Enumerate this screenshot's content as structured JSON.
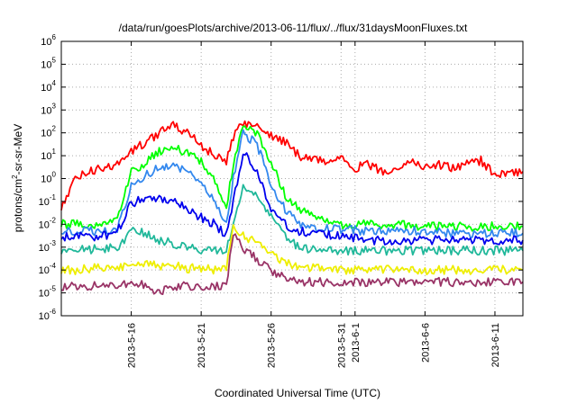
{
  "chart_data": {
    "type": "line",
    "title": "/data/run/goesPlots/archive/2013-06-11/flux/../flux/31daysMoonFluxes.txt",
    "xlabel": "Coordinated Universal Time (UTC)",
    "ylabel": "protons/cm²-sr-sr-MeV",
    "ylabel_parts": {
      "pre": "protons/cm",
      "sup": "2",
      "post": "-sr-sr-MeV"
    },
    "yscale": "log",
    "ylim": [
      1e-06,
      1000000.0
    ],
    "y_ticks": [
      {
        "value": 1e-06,
        "base": "10",
        "exp": "-6"
      },
      {
        "value": 1e-05,
        "base": "10",
        "exp": "-5"
      },
      {
        "value": 0.0001,
        "base": "10",
        "exp": "-4"
      },
      {
        "value": 0.001,
        "base": "10",
        "exp": "-3"
      },
      {
        "value": 0.01,
        "base": "10",
        "exp": "-2"
      },
      {
        "value": 0.1,
        "base": "10",
        "exp": "-1"
      },
      {
        "value": 1,
        "base": "10",
        "exp": "0"
      },
      {
        "value": 10,
        "base": "10",
        "exp": "1"
      },
      {
        "value": 100,
        "base": "10",
        "exp": "2"
      },
      {
        "value": 1000.0,
        "base": "10",
        "exp": "3"
      },
      {
        "value": 10000.0,
        "base": "10",
        "exp": "4"
      },
      {
        "value": 100000.0,
        "base": "10",
        "exp": "5"
      },
      {
        "value": 1000000.0,
        "base": "10",
        "exp": "6"
      }
    ],
    "xlim": [
      "2013-05-11",
      "2013-06-13"
    ],
    "x_ticks": [
      {
        "date": "2013-05-16",
        "label": "2013-5-16"
      },
      {
        "date": "2013-05-21",
        "label": "2013-5-21"
      },
      {
        "date": "2013-05-26",
        "label": "2013-5-26"
      },
      {
        "date": "2013-05-31",
        "label": "2013-5-31"
      },
      {
        "date": "2013-06-01",
        "label": "2013-6-1"
      },
      {
        "date": "2013-06-06",
        "label": "2013-6-6"
      },
      {
        "date": "2013-06-11",
        "label": "2013-6-11"
      }
    ],
    "grid": true,
    "series": [
      {
        "color": "#ff0000",
        "points": [
          [
            "2013-05-11",
            0.05
          ],
          [
            "2013-05-12",
            1
          ],
          [
            "2013-05-13",
            2
          ],
          [
            "2013-05-14",
            3
          ],
          [
            "2013-05-15",
            4
          ],
          [
            "2013-05-16",
            15
          ],
          [
            "2013-05-17",
            40
          ],
          [
            "2013-05-18",
            100
          ],
          [
            "2013-05-19",
            200
          ],
          [
            "2013-05-20",
            100
          ],
          [
            "2013-05-21",
            30
          ],
          [
            "2013-05-22",
            10
          ],
          [
            "2013-05-22.8",
            5
          ],
          [
            "2013-05-23.3",
            60
          ],
          [
            "2013-05-24",
            300
          ],
          [
            "2013-05-25",
            200
          ],
          [
            "2013-05-26",
            80
          ],
          [
            "2013-05-27",
            40
          ],
          [
            "2013-05-28",
            10
          ],
          [
            "2013-05-29",
            8
          ],
          [
            "2013-05-30",
            5
          ],
          [
            "2013-05-31",
            10
          ],
          [
            "2013-06-01",
            3
          ],
          [
            "2013-06-02",
            4
          ],
          [
            "2013-06-03",
            2
          ],
          [
            "2013-06-04",
            3
          ],
          [
            "2013-06-05",
            6
          ],
          [
            "2013-06-06",
            3
          ],
          [
            "2013-06-07",
            4
          ],
          [
            "2013-06-08",
            3
          ],
          [
            "2013-06-09",
            4
          ],
          [
            "2013-06-10",
            6
          ],
          [
            "2013-06-11",
            1.5
          ],
          [
            "2013-06-12",
            2
          ],
          [
            "2013-06-13",
            2
          ]
        ]
      },
      {
        "color": "#00ff00",
        "points": [
          [
            "2013-05-11",
            0.01
          ],
          [
            "2013-05-12",
            0.01
          ],
          [
            "2013-05-13",
            0.01
          ],
          [
            "2013-05-14",
            0.01
          ],
          [
            "2013-05-15",
            0.02
          ],
          [
            "2013-05-16",
            2
          ],
          [
            "2013-05-17",
            5
          ],
          [
            "2013-05-18",
            15
          ],
          [
            "2013-05-19",
            20
          ],
          [
            "2013-05-20",
            15
          ],
          [
            "2013-05-21",
            6
          ],
          [
            "2013-05-22",
            0.7
          ],
          [
            "2013-05-22.8",
            0.05
          ],
          [
            "2013-05-23.3",
            5
          ],
          [
            "2013-05-24",
            200
          ],
          [
            "2013-05-25",
            100
          ],
          [
            "2013-05-26",
            5
          ],
          [
            "2013-05-27",
            0.2
          ],
          [
            "2013-05-28",
            0.05
          ],
          [
            "2013-05-29",
            0.02
          ],
          [
            "2013-05-31",
            0.01
          ],
          [
            "2013-06-02",
            0.01
          ],
          [
            "2013-06-04",
            0.01
          ],
          [
            "2013-06-06",
            0.008
          ],
          [
            "2013-06-08",
            0.008
          ],
          [
            "2013-06-10",
            0.008
          ],
          [
            "2013-06-13",
            0.008
          ]
        ]
      },
      {
        "color": "#3388ee",
        "points": [
          [
            "2013-05-11",
            0.005
          ],
          [
            "2013-05-12",
            0.005
          ],
          [
            "2013-05-13",
            0.005
          ],
          [
            "2013-05-14",
            0.005
          ],
          [
            "2013-05-15",
            0.007
          ],
          [
            "2013-05-16",
            0.5
          ],
          [
            "2013-05-17",
            1.5
          ],
          [
            "2013-05-18",
            3
          ],
          [
            "2013-05-19",
            3
          ],
          [
            "2013-05-20",
            2
          ],
          [
            "2013-05-21",
            0.5
          ],
          [
            "2013-05-22",
            0.1
          ],
          [
            "2013-05-22.8",
            0.01
          ],
          [
            "2013-05-23.3",
            1
          ],
          [
            "2013-05-24",
            100
          ],
          [
            "2013-05-25",
            30
          ],
          [
            "2013-05-26",
            0.5
          ],
          [
            "2013-05-27",
            0.05
          ],
          [
            "2013-05-28",
            0.01
          ],
          [
            "2013-05-29",
            0.007
          ],
          [
            "2013-05-31",
            0.006
          ],
          [
            "2013-06-02",
            0.005
          ],
          [
            "2013-06-04",
            0.005
          ],
          [
            "2013-06-06",
            0.005
          ],
          [
            "2013-06-08",
            0.004
          ],
          [
            "2013-06-10",
            0.004
          ],
          [
            "2013-06-13",
            0.004
          ]
        ]
      },
      {
        "color": "#0000ee",
        "points": [
          [
            "2013-05-11",
            0.003
          ],
          [
            "2013-05-12",
            0.003
          ],
          [
            "2013-05-13",
            0.003
          ],
          [
            "2013-05-14",
            0.003
          ],
          [
            "2013-05-15",
            0.005
          ],
          [
            "2013-05-16",
            0.08
          ],
          [
            "2013-05-17",
            0.15
          ],
          [
            "2013-05-18",
            0.15
          ],
          [
            "2013-05-19",
            0.1
          ],
          [
            "2013-05-20",
            0.05
          ],
          [
            "2013-05-21",
            0.02
          ],
          [
            "2013-05-22",
            0.01
          ],
          [
            "2013-05-22.8",
            0.003
          ],
          [
            "2013-05-23.3",
            0.1
          ],
          [
            "2013-05-24",
            15
          ],
          [
            "2013-05-25",
            2
          ],
          [
            "2013-05-26",
            0.05
          ],
          [
            "2013-05-27",
            0.01
          ],
          [
            "2013-05-28",
            0.005
          ],
          [
            "2013-05-29",
            0.004
          ],
          [
            "2013-05-31",
            0.003
          ],
          [
            "2013-06-02",
            0.002
          ],
          [
            "2013-06-04",
            0.002
          ],
          [
            "2013-06-06",
            0.002
          ],
          [
            "2013-06-08",
            0.002
          ],
          [
            "2013-06-10",
            0.002
          ],
          [
            "2013-06-13",
            0.002
          ]
        ]
      },
      {
        "color": "#20b89a",
        "points": [
          [
            "2013-05-11",
            0.0007
          ],
          [
            "2013-05-12",
            0.0008
          ],
          [
            "2013-05-13",
            0.0008
          ],
          [
            "2013-05-14",
            0.0008
          ],
          [
            "2013-05-15",
            0.001
          ],
          [
            "2013-05-16",
            0.005
          ],
          [
            "2013-05-17",
            0.004
          ],
          [
            "2013-05-18",
            0.002
          ],
          [
            "2013-05-19",
            0.0015
          ],
          [
            "2013-05-20",
            0.001
          ],
          [
            "2013-05-21",
            0.0008
          ],
          [
            "2013-05-22",
            0.0008
          ],
          [
            "2013-05-22.8",
            0.0008
          ],
          [
            "2013-05-23.3",
            0.01
          ],
          [
            "2013-05-24",
            0.5
          ],
          [
            "2013-05-25",
            0.15
          ],
          [
            "2013-05-26",
            0.02
          ],
          [
            "2013-05-27",
            0.003
          ],
          [
            "2013-05-28",
            0.001
          ],
          [
            "2013-05-29",
            0.0008
          ],
          [
            "2013-05-31",
            0.0007
          ],
          [
            "2013-06-02",
            0.0007
          ],
          [
            "2013-06-04",
            0.0007
          ],
          [
            "2013-06-06",
            0.0007
          ],
          [
            "2013-06-08",
            0.0007
          ],
          [
            "2013-06-10",
            0.0007
          ],
          [
            "2013-06-13",
            0.0007
          ]
        ]
      },
      {
        "color": "#eeee00",
        "points": [
          [
            "2013-05-11",
            0.0001
          ],
          [
            "2013-05-12",
            0.0001
          ],
          [
            "2013-05-13",
            0.00012
          ],
          [
            "2013-05-14",
            0.00012
          ],
          [
            "2013-05-15",
            0.00012
          ],
          [
            "2013-05-16",
            0.00015
          ],
          [
            "2013-05-17",
            0.0002
          ],
          [
            "2013-05-18",
            0.00015
          ],
          [
            "2013-05-19",
            0.00015
          ],
          [
            "2013-05-20",
            0.00012
          ],
          [
            "2013-05-21",
            0.00012
          ],
          [
            "2013-05-22",
            0.0001
          ],
          [
            "2013-05-22.8",
            0.0001
          ],
          [
            "2013-05-23.3",
            0.01
          ],
          [
            "2013-05-24",
            0.003
          ],
          [
            "2013-05-25",
            0.0015
          ],
          [
            "2013-05-26",
            0.0005
          ],
          [
            "2013-05-27",
            0.0002
          ],
          [
            "2013-05-28",
            0.00015
          ],
          [
            "2013-05-29",
            0.00012
          ],
          [
            "2013-05-31",
            0.0001
          ],
          [
            "2013-06-02",
            0.0001
          ],
          [
            "2013-06-04",
            0.0001
          ],
          [
            "2013-06-06",
            0.0001
          ],
          [
            "2013-06-08",
            0.0001
          ],
          [
            "2013-06-10",
            0.0001
          ],
          [
            "2013-06-13",
            0.0001
          ]
        ]
      },
      {
        "color": "#993366",
        "points": [
          [
            "2013-05-11",
            2e-05
          ],
          [
            "2013-05-12",
            2e-05
          ],
          [
            "2013-05-13",
            2e-05
          ],
          [
            "2013-05-14",
            2e-05
          ],
          [
            "2013-05-15",
            2e-05
          ],
          [
            "2013-05-16",
            3e-05
          ],
          [
            "2013-05-17",
            2e-05
          ],
          [
            "2013-05-18",
            1e-05
          ],
          [
            "2013-05-19",
            2e-05
          ],
          [
            "2013-05-20",
            2e-05
          ],
          [
            "2013-05-21",
            2e-05
          ],
          [
            "2013-05-22",
            2e-05
          ],
          [
            "2013-05-22.8",
            2e-05
          ],
          [
            "2013-05-23.3",
            0.004
          ],
          [
            "2013-05-24",
            0.0008
          ],
          [
            "2013-05-25",
            0.0003
          ],
          [
            "2013-05-26",
            0.0001
          ],
          [
            "2013-05-27",
            4e-05
          ],
          [
            "2013-05-28",
            3e-05
          ],
          [
            "2013-05-29",
            3e-05
          ],
          [
            "2013-05-31",
            3e-05
          ],
          [
            "2013-06-02",
            3e-05
          ],
          [
            "2013-06-04",
            3e-05
          ],
          [
            "2013-06-06",
            3e-05
          ],
          [
            "2013-06-08",
            3e-05
          ],
          [
            "2013-06-10",
            3e-05
          ],
          [
            "2013-06-13",
            3e-05
          ]
        ]
      }
    ]
  }
}
